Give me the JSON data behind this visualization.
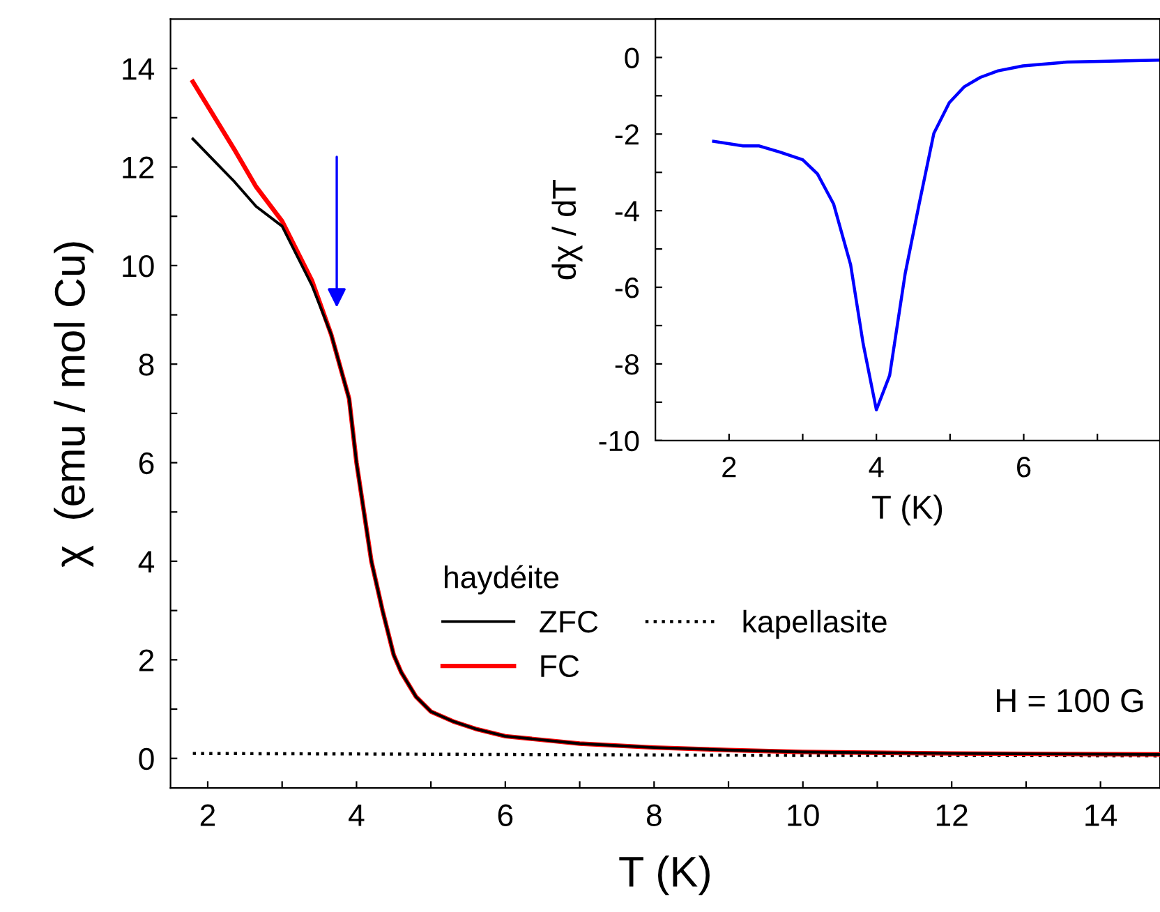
{
  "chart_data": [
    {
      "type": "line",
      "xlabel": "T (K)",
      "ylabel": "χ  (emu / mol Cu)",
      "legend_title": "haydéite",
      "legend": "bottom",
      "grid": false,
      "line_style": "solid",
      "marker": "none",
      "xlim": [
        1.5,
        14.8
      ],
      "ylim": [
        -0.6,
        15
      ],
      "xticks": [
        2,
        {
          "value": 3,
          "label": null
        },
        4,
        {
          "value": 5,
          "label": null
        },
        6,
        {
          "value": 7,
          "label": null
        },
        8,
        {
          "value": 9,
          "label": null
        },
        10,
        {
          "value": 11,
          "label": null
        },
        12,
        {
          "value": 13,
          "label": null
        },
        14
      ],
      "yticks": [
        0,
        {
          "value": 1,
          "label": null
        },
        2,
        {
          "value": 3,
          "label": null
        },
        4,
        {
          "value": 5,
          "label": null
        },
        6,
        {
          "value": 7,
          "label": null
        },
        8,
        {
          "value": 9,
          "label": null
        },
        10,
        {
          "value": 11,
          "label": null
        },
        12,
        {
          "value": 13,
          "label": null
        },
        14
      ],
      "series": [
        {
          "name": "ZFC",
          "color": "#000000",
          "x": [
            1.8,
            2.36,
            2.65,
            3.0,
            3.4,
            3.66,
            3.9,
            4.0,
            4.1,
            4.2,
            4.35,
            4.5,
            4.6,
            4.8,
            5.0,
            5.3,
            5.6,
            6,
            7,
            8,
            9,
            10,
            12,
            14.8
          ],
          "values": [
            12.57,
            11.7,
            11.2,
            10.8,
            9.6,
            8.6,
            7.3,
            6.0,
            5.0,
            4.0,
            3.0,
            2.1,
            1.75,
            1.25,
            0.95,
            0.75,
            0.6,
            0.45,
            0.3,
            0.22,
            0.17,
            0.13,
            0.1,
            0.08
          ]
        },
        {
          "name": "FC",
          "color": "#ff0000",
          "x": [
            1.8,
            2.36,
            2.65,
            3.0,
            3.4,
            3.66,
            3.9,
            4.0,
            4.1,
            4.2,
            4.35,
            4.5,
            4.6,
            4.8,
            5.0,
            5.3,
            5.6,
            6,
            7,
            8,
            9,
            10,
            12,
            14.8
          ],
          "values": [
            13.73,
            12.35,
            11.6,
            10.9,
            9.7,
            8.6,
            7.3,
            6.0,
            5.0,
            4.0,
            3.0,
            2.1,
            1.75,
            1.25,
            0.95,
            0.75,
            0.6,
            0.45,
            0.3,
            0.22,
            0.17,
            0.13,
            0.1,
            0.08
          ]
        },
        {
          "name": "kapellasite",
          "color": "#000000",
          "line_style": "dotted",
          "x": [
            1.8,
            4,
            6,
            8,
            10,
            12,
            14.8
          ],
          "values": [
            0.1,
            0.09,
            0.08,
            0.07,
            0.06,
            0.06,
            0.05
          ]
        }
      ],
      "annotations": [
        "H = 100 G"
      ]
    },
    {
      "type": "line",
      "xlabel": "T (K)",
      "ylabel": "dχ / dT",
      "grid": false,
      "marker": "none",
      "line_style": "solid",
      "xlim": [
        1.0,
        7.85
      ],
      "ylim": [
        -10,
        1
      ],
      "xticks": [
        2,
        {
          "value": 3,
          "label": null
        },
        4,
        {
          "value": 5,
          "label": null
        },
        6,
        {
          "value": 7,
          "label": null
        }
      ],
      "yticks": [
        -10,
        {
          "value": -9,
          "label": null
        },
        -8,
        {
          "value": -7,
          "label": null
        },
        -6,
        {
          "value": -5,
          "label": null
        },
        -4,
        {
          "value": -3,
          "label": null
        },
        -2,
        {
          "value": -1,
          "label": null
        },
        0
      ],
      "series": [
        {
          "color": "#0000ff",
          "x": [
            1.79,
            2.19,
            2.41,
            2.69,
            3.0,
            3.2,
            3.42,
            3.65,
            3.82,
            4.0,
            4.18,
            4.39,
            4.58,
            4.78,
            4.99,
            5.19,
            5.41,
            5.65,
            5.99,
            6.59,
            7.82
          ],
          "values": [
            -2.19,
            -2.31,
            -2.31,
            -2.47,
            -2.67,
            -3.04,
            -3.83,
            -5.41,
            -7.47,
            -9.2,
            -8.3,
            -5.65,
            -3.83,
            -1.98,
            -1.18,
            -0.77,
            -0.52,
            -0.35,
            -0.22,
            -0.12,
            -0.07
          ]
        }
      ]
    }
  ]
}
